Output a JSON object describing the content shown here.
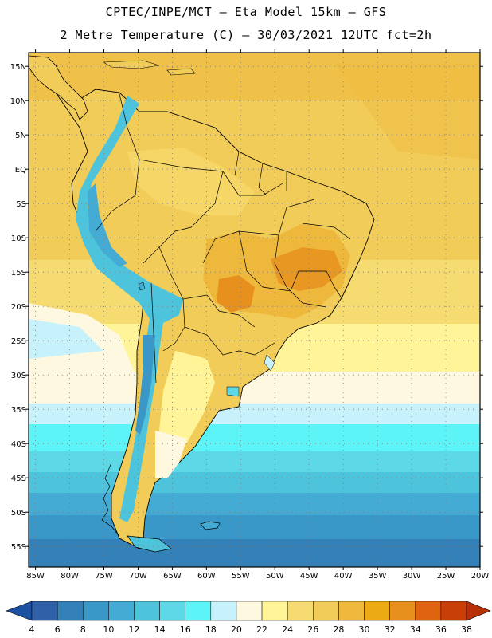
{
  "header": {
    "line1": "CPTEC/INPE/MCT –  Eta Model 15km – GFS",
    "line2": "2 Metre Temperature (C) – 30/03/2021 12UTC fct=2h"
  },
  "axes": {
    "lat_labels": [
      "15N",
      "10N",
      "5N",
      "EQ",
      "5S",
      "10S",
      "15S",
      "20S",
      "25S",
      "30S",
      "35S",
      "40S",
      "45S",
      "50S",
      "55S"
    ],
    "lon_labels": [
      "85W",
      "80W",
      "75W",
      "70W",
      "65W",
      "60W",
      "55W",
      "50W",
      "45W",
      "40W",
      "35W",
      "30W",
      "25W",
      "20W"
    ],
    "lat_range": [
      -58,
      17
    ],
    "lon_range": [
      -86,
      -20
    ]
  },
  "colorbar": {
    "labels": [
      "4",
      "6",
      "8",
      "10",
      "12",
      "14",
      "16",
      "18",
      "20",
      "22",
      "24",
      "26",
      "28",
      "30",
      "32",
      "34",
      "36",
      "38"
    ],
    "colors": [
      "#3060a8",
      "#3480b8",
      "#3a98c8",
      "#44acd4",
      "#4ec4dc",
      "#5cd8e6",
      "#5cf4f6",
      "#c8f2fb",
      "#fff8e0",
      "#fff498",
      "#f6dc70",
      "#f2cc58",
      "#eeb83c",
      "#ecaa14",
      "#e8901e",
      "#e06410",
      "#c84008"
    ],
    "left_arrow_color": "#1c50a0",
    "right_arrow_color": "#b83008"
  },
  "map_colors": {
    "ocean_warm": "#f2cc58",
    "ocean_hot": "#eeb83c",
    "land_base": "#f2cc58",
    "land_hot": "#e8901e",
    "andes_cold": "#4ec4dc",
    "border": "#000000",
    "frame": "#000000"
  }
}
